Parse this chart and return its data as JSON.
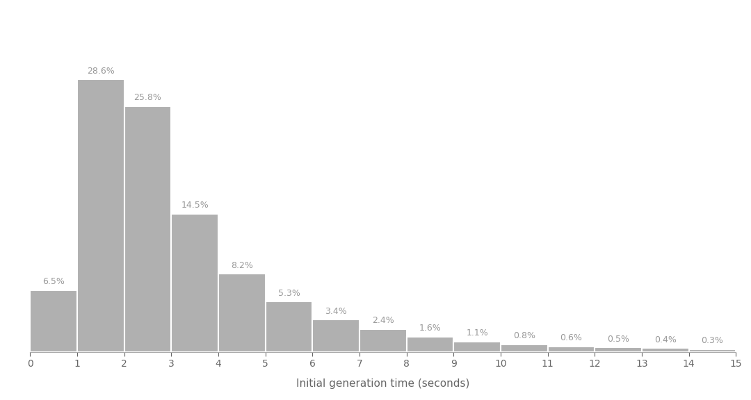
{
  "categories": [
    0,
    1,
    2,
    3,
    4,
    5,
    6,
    7,
    8,
    9,
    10,
    11,
    12,
    13,
    14
  ],
  "values": [
    6.5,
    28.6,
    25.8,
    14.5,
    8.2,
    5.3,
    3.4,
    2.4,
    1.6,
    1.1,
    0.8,
    0.6,
    0.5,
    0.4,
    0.3
  ],
  "labels": [
    "6.5%",
    "28.6%",
    "25.8%",
    "14.5%",
    "8.2%",
    "5.3%",
    "3.4%",
    "2.4%",
    "1.6%",
    "1.1%",
    "0.8%",
    "0.6%",
    "0.5%",
    "0.4%",
    "0.3%"
  ],
  "bar_color": "#b0b0b0",
  "bar_edge_color": "#ffffff",
  "background_color": "#ffffff",
  "xlabel": "Initial generation time (seconds)",
  "xlabel_fontsize": 11,
  "label_fontsize": 9,
  "label_color": "#999999",
  "xlim": [
    0,
    15
  ],
  "ylim": [
    0,
    34
  ],
  "xticks": [
    0,
    1,
    2,
    3,
    4,
    5,
    6,
    7,
    8,
    9,
    10,
    11,
    12,
    13,
    14,
    15
  ]
}
